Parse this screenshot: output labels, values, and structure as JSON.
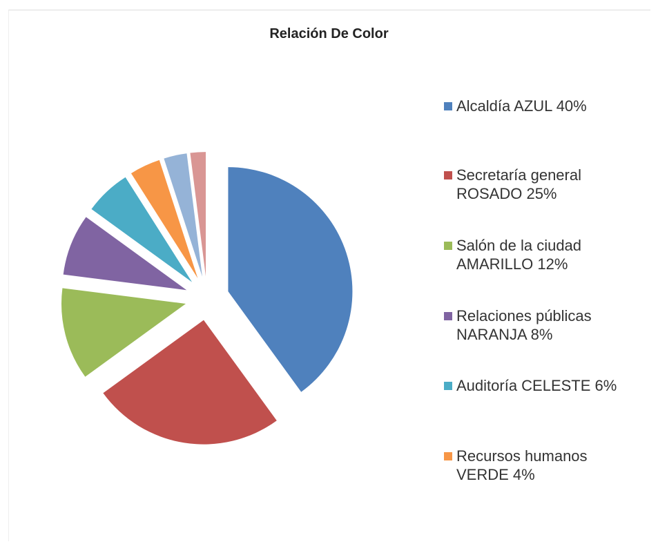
{
  "chart_data": {
    "type": "pie",
    "title": "Relación De Color",
    "categories": [
      "Alcaldía AZUL 40%",
      "Secretaría general ROSADO 25%",
      "Salón de la ciudad AMARILLO 12%",
      "Relaciones públicas NARANJA 8%",
      "Auditoría CELESTE 6%",
      "Recursos humanos VERDE 4%",
      null,
      null
    ],
    "values": [
      40,
      25,
      12,
      8,
      6,
      4,
      3,
      2
    ],
    "colors": [
      "#4f81bd",
      "#c0504d",
      "#9bbb59",
      "#8064a2",
      "#4bacc6",
      "#f79646",
      "#95b3d7",
      "#d99694"
    ],
    "legend": "right"
  }
}
